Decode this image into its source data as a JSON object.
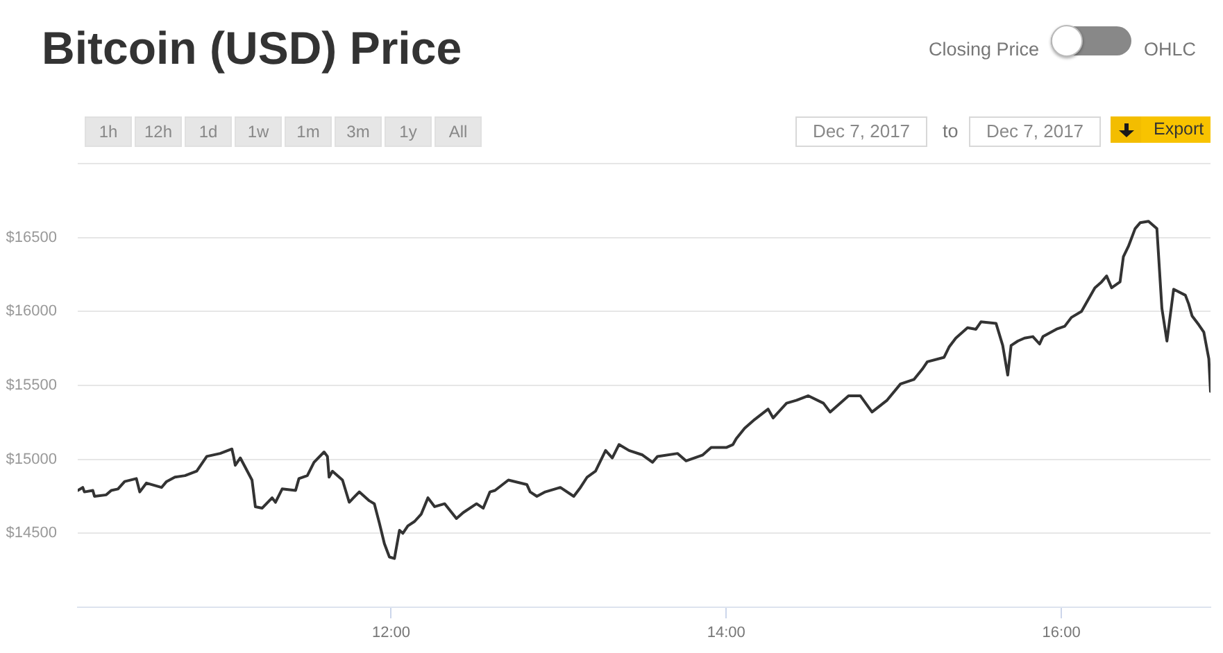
{
  "chart_data": {
    "type": "line",
    "title": "Bitcoin (USD) Price",
    "x": [
      10.13,
      10.16,
      10.17,
      10.22,
      10.23,
      10.3,
      10.33,
      10.37,
      10.41,
      10.48,
      10.5,
      10.54,
      10.63,
      10.66,
      10.71,
      10.77,
      10.84,
      10.9,
      10.98,
      11.05,
      11.06,
      11.07,
      11.1,
      11.17,
      11.19,
      11.23,
      11.29,
      11.31,
      11.35,
      11.43,
      11.45,
      11.5,
      11.54,
      11.6,
      11.62,
      11.63,
      11.65,
      11.71,
      11.75,
      11.81,
      11.87,
      11.9,
      11.93,
      11.96,
      11.99,
      12.02,
      12.05,
      12.07,
      12.1,
      12.14,
      12.18,
      12.22,
      12.26,
      12.32,
      12.39,
      12.43,
      12.51,
      12.55,
      12.59,
      12.62,
      12.7,
      12.81,
      12.83,
      12.87,
      12.92,
      13.01,
      13.09,
      13.13,
      13.17,
      13.22,
      13.28,
      13.32,
      13.36,
      13.42,
      13.5,
      13.56,
      13.59,
      13.71,
      13.76,
      13.86,
      13.91,
      14.0,
      14.04,
      14.06,
      14.11,
      14.17,
      14.25,
      14.28,
      14.32,
      14.36,
      14.42,
      14.49,
      14.58,
      14.62,
      14.73,
      14.8,
      14.87,
      14.96,
      15.04,
      15.12,
      15.17,
      15.2,
      15.3,
      15.33,
      15.37,
      15.44,
      15.49,
      15.52,
      15.61,
      15.65,
      15.68,
      15.7,
      15.74,
      15.78,
      15.83,
      15.87,
      15.89,
      15.97,
      16.02,
      16.06,
      16.12,
      16.2,
      16.24,
      16.27,
      16.3,
      16.35,
      16.37,
      16.4,
      16.44,
      16.47,
      16.52,
      16.57,
      16.6,
      16.63,
      16.67,
      16.74,
      16.76,
      16.78,
      16.82,
      16.85,
      16.88,
      16.89
    ],
    "values": [
      14790,
      14810,
      14780,
      14790,
      14750,
      14760,
      14790,
      14800,
      14850,
      14870,
      14780,
      14840,
      14810,
      14850,
      14880,
      14890,
      14920,
      15020,
      15040,
      15070,
      15020,
      14960,
      15010,
      14860,
      14680,
      14670,
      14740,
      14710,
      14800,
      14790,
      14870,
      14890,
      14980,
      15050,
      15020,
      14880,
      14920,
      14860,
      14710,
      14780,
      14720,
      14700,
      14570,
      14430,
      14340,
      14330,
      14520,
      14500,
      14550,
      14580,
      14630,
      14740,
      14680,
      14700,
      14600,
      14640,
      14700,
      14670,
      14780,
      14790,
      14860,
      14830,
      14780,
      14750,
      14780,
      14810,
      14750,
      14810,
      14880,
      14920,
      15060,
      15010,
      15100,
      15060,
      15030,
      14980,
      15020,
      15040,
      14990,
      15030,
      15080,
      15080,
      15100,
      15140,
      15210,
      15270,
      15340,
      15280,
      15330,
      15380,
      15400,
      15430,
      15380,
      15320,
      15430,
      15430,
      15320,
      15400,
      15510,
      15540,
      15610,
      15660,
      15690,
      15760,
      15820,
      15890,
      15880,
      15930,
      15920,
      15770,
      15570,
      15770,
      15800,
      15820,
      15830,
      15780,
      15830,
      15880,
      15900,
      15960,
      16000,
      16160,
      16200,
      16240,
      16160,
      16200,
      16370,
      16440,
      16560,
      16600,
      16610,
      16560,
      16020,
      15800,
      16150,
      16110,
      16050,
      15970,
      15910,
      15860,
      15680,
      15460
    ],
    "color": "#333333",
    "xlim": [
      10.13,
      16.89
    ],
    "xticks": [
      {
        "value": 12,
        "label": "12:00"
      },
      {
        "value": 14,
        "label": "14:00"
      },
      {
        "value": 16,
        "label": "16:00"
      }
    ],
    "ylim": [
      14000,
      17000
    ],
    "yticks": [
      {
        "value": 14500,
        "label": "$14500"
      },
      {
        "value": 15000,
        "label": "$15000"
      },
      {
        "value": 15500,
        "label": "$15500"
      },
      {
        "value": 16000,
        "label": "$16000"
      },
      {
        "value": 16500,
        "label": "$16500"
      },
      {
        "value": 17000,
        "label": null
      }
    ],
    "grid": "y",
    "marker": "none",
    "annotations": [
      "Closing Price",
      "OHLC",
      "1h",
      "12h",
      "1d",
      "1w",
      "1m",
      "3m",
      "1y",
      "All",
      "Dec 7, 2017",
      "to",
      "Dec 7, 2017",
      "Export"
    ]
  }
}
